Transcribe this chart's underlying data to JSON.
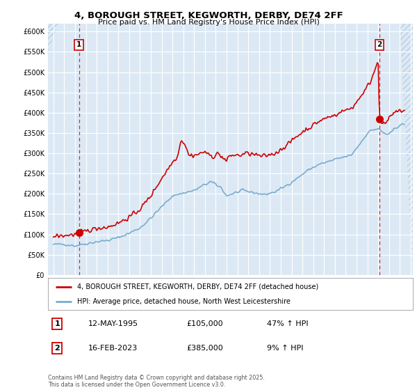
{
  "title_line1": "4, BOROUGH STREET, KEGWORTH, DERBY, DE74 2FF",
  "title_line2": "Price paid vs. HM Land Registry's House Price Index (HPI)",
  "ylim": [
    0,
    620000
  ],
  "yticks": [
    0,
    50000,
    100000,
    150000,
    200000,
    250000,
    300000,
    350000,
    400000,
    450000,
    500000,
    550000,
    600000
  ],
  "ytick_labels": [
    "£0",
    "£50K",
    "£100K",
    "£150K",
    "£200K",
    "£250K",
    "£300K",
    "£350K",
    "£400K",
    "£450K",
    "£500K",
    "£550K",
    "£600K"
  ],
  "xlim_start": 1992.5,
  "xlim_end": 2026.2,
  "sale1_x": 1995.36,
  "sale1_y": 105000,
  "sale2_x": 2023.12,
  "sale2_y": 385000,
  "red_line_color": "#cc0000",
  "blue_line_color": "#7aabcf",
  "plot_bg_color": "#dce9f5",
  "hatch_edge_color": "#b8cfe0",
  "legend_label_red": "4, BOROUGH STREET, KEGWORTH, DERBY, DE74 2FF (detached house)",
  "legend_label_blue": "HPI: Average price, detached house, North West Leicestershire",
  "annotation1_date": "12-MAY-1995",
  "annotation1_price": "£105,000",
  "annotation1_hpi": "47% ↑ HPI",
  "annotation2_date": "16-FEB-2023",
  "annotation2_price": "£385,000",
  "annotation2_hpi": "9% ↑ HPI",
  "footnote": "Contains HM Land Registry data © Crown copyright and database right 2025.\nThis data is licensed under the Open Government Licence v3.0."
}
